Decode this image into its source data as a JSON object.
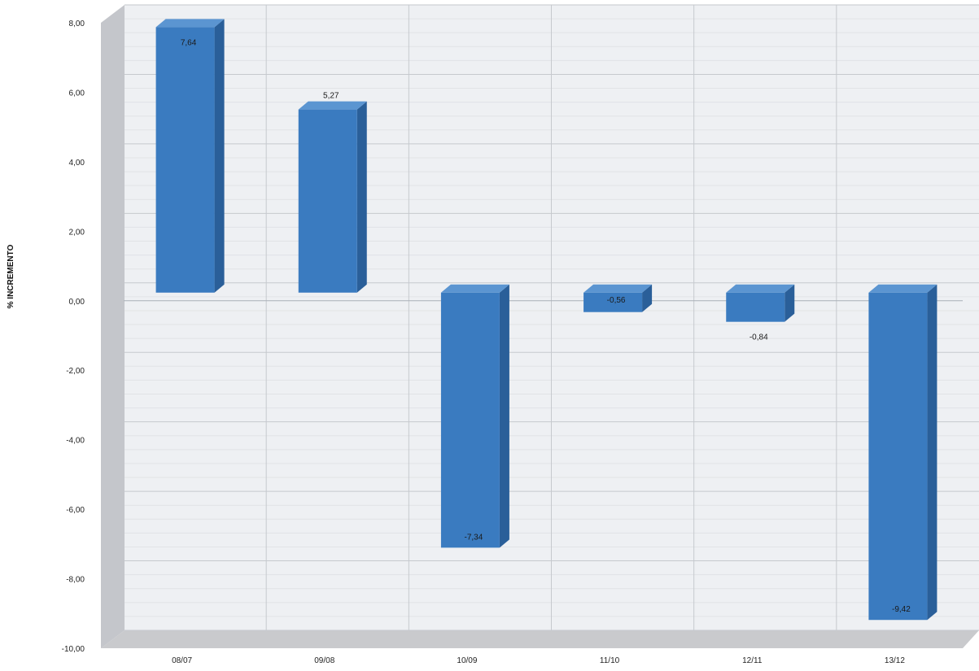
{
  "chart_data": {
    "type": "bar",
    "title": "",
    "xlabel": "",
    "ylabel": "% INCREMENTO",
    "categories": [
      "08/07",
      "09/08",
      "10/09",
      "11/10",
      "12/11",
      "13/12"
    ],
    "values": [
      7.64,
      5.27,
      -7.34,
      -0.56,
      -0.84,
      -9.42
    ],
    "value_labels": [
      "7,64",
      "5,27",
      "-7,34",
      "-0,56",
      "-0,84",
      "-9,42"
    ],
    "ylim": [
      -10,
      8
    ],
    "yticks": [
      8,
      6,
      4,
      2,
      0,
      -2,
      -4,
      -6,
      -8,
      -10
    ],
    "ytick_labels": [
      "8,00",
      "6,00",
      "4,00",
      "2,00",
      "0,00",
      "-2,00",
      "-4,00",
      "-6,00",
      "-8,00",
      "-10,00"
    ],
    "grid": true,
    "style": "3d-column",
    "legend": "none"
  },
  "colors": {
    "bar_front": "#3a7bc0",
    "bar_side": "#2a5f99",
    "bar_top": "#5b95d1",
    "wall": "#eef0f3",
    "wall_side": "#c4c6cb",
    "floor": "#c9cacd",
    "grid_major": "#c6c9ce",
    "grid_minor": "#e1e3e6"
  }
}
